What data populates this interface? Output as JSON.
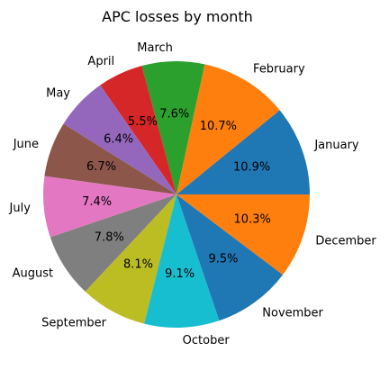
{
  "chart_data": {
    "type": "pie",
    "title": "APC losses by month",
    "start_angle_deg": 0,
    "direction": "counterclockwise",
    "categories": [
      "January",
      "February",
      "March",
      "April",
      "May",
      "June",
      "July",
      "August",
      "September",
      "October",
      "November",
      "December"
    ],
    "values": [
      10.9,
      10.7,
      7.6,
      5.5,
      6.4,
      6.7,
      7.4,
      7.8,
      8.1,
      9.1,
      9.5,
      10.3
    ],
    "data_labels": [
      "10.9%",
      "10.7%",
      "7.6%",
      "5.5%",
      "6.4%",
      "6.7%",
      "7.4%",
      "7.8%",
      "8.1%",
      "9.1%",
      "9.5%",
      "10.3%"
    ],
    "colors": [
      "#1f77b4",
      "#ff7f0e",
      "#2ca02c",
      "#d62728",
      "#9467bd",
      "#8c564b",
      "#e377c2",
      "#7f7f7f",
      "#bcbd22",
      "#17becf",
      "#1f77b4",
      "#ff7f0e"
    ]
  }
}
